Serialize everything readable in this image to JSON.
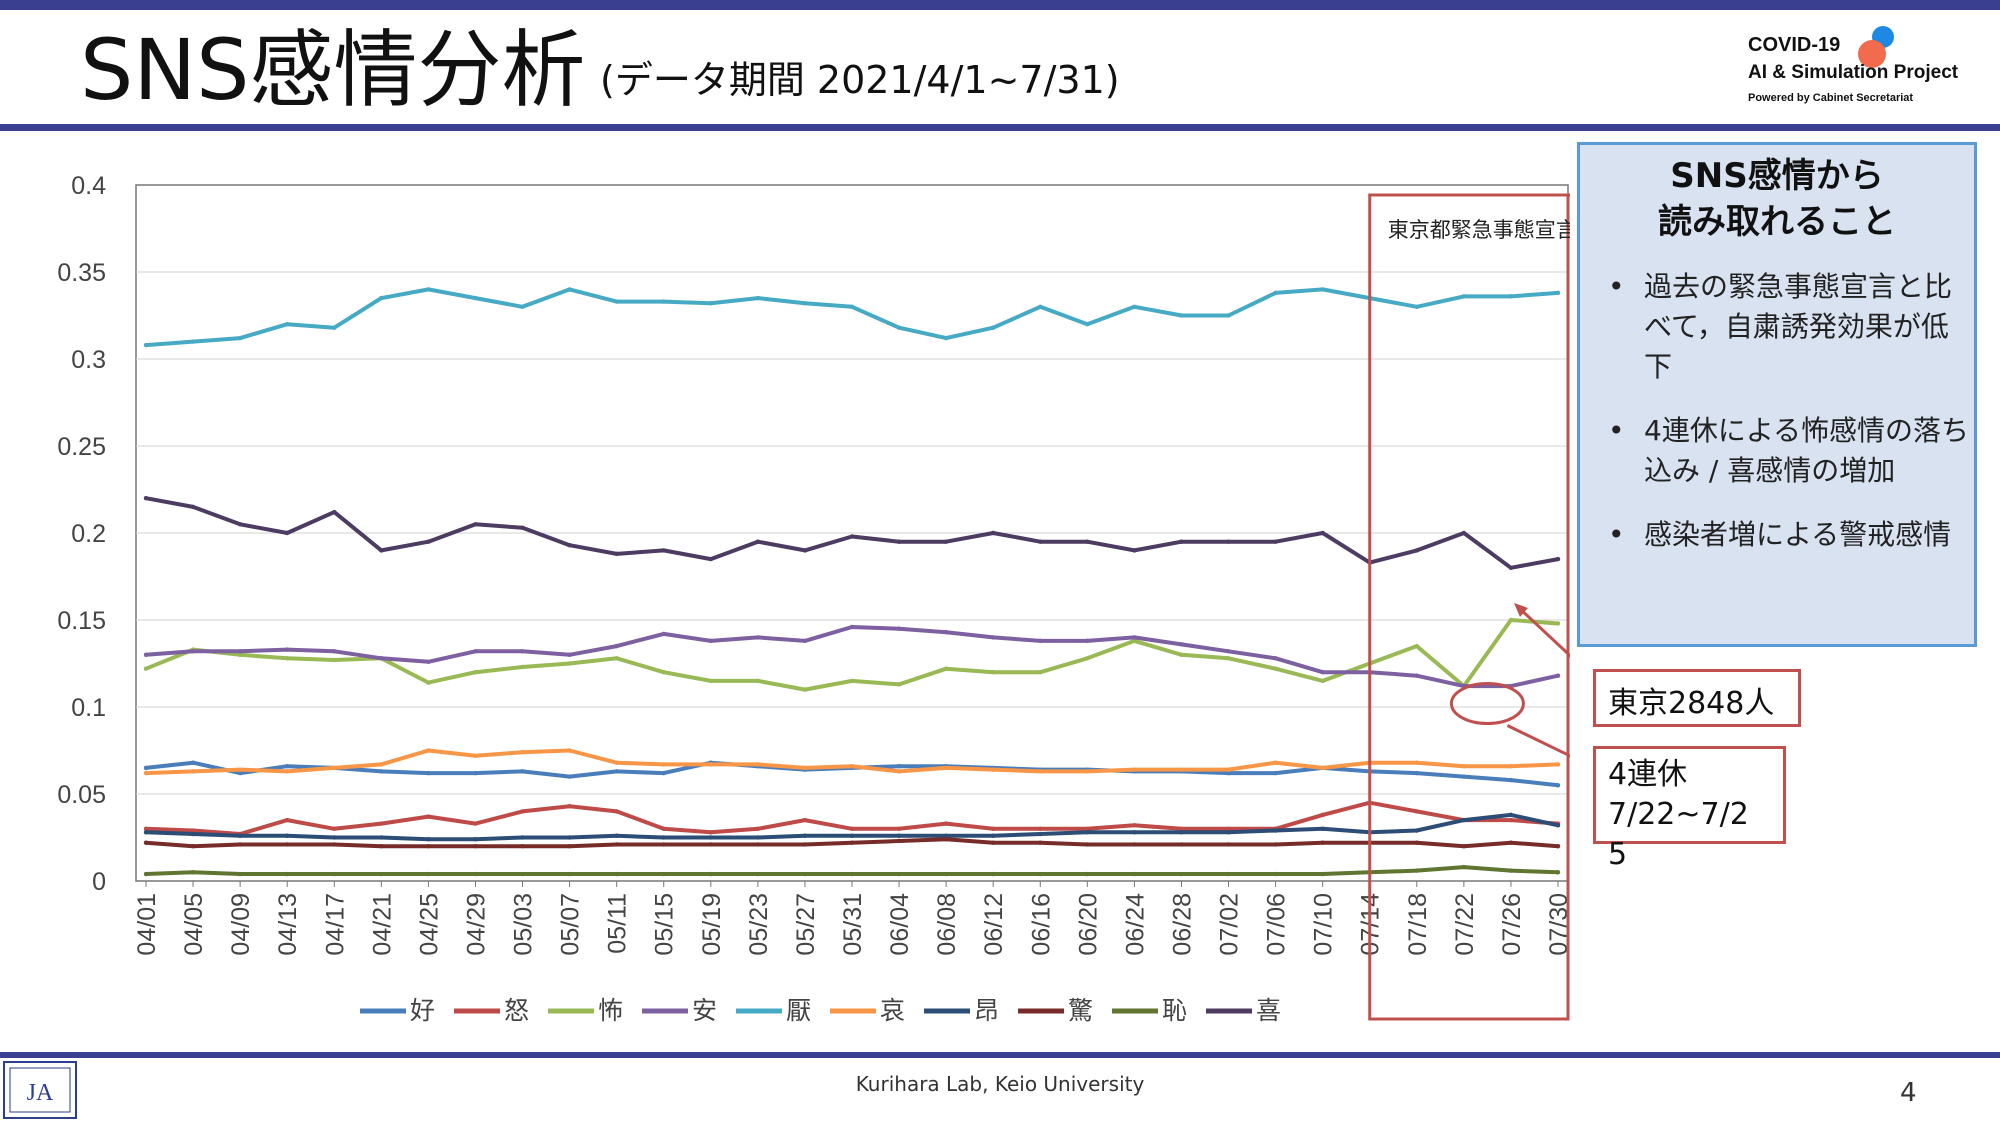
{
  "slide": {
    "title": "SNS感情分析",
    "subtitle": "(データ期間 2021/4/1~7/31)",
    "logo_line1": "COVID-19",
    "logo_line2": "AI & Simulation Project",
    "logo_line3": "Powered by Cabinet Secretariat",
    "footer": "Kurihara Lab, Keio University",
    "page_number": "4",
    "footer_logo_text": "JA"
  },
  "panel": {
    "title_line1": "SNS感情から",
    "title_line2": "読み取れること",
    "bullets": [
      "過去の緊急事態宣言と比べて，自粛誘発効果が低下",
      "4連休による怖感情の落ち込み / 喜感情の増加",
      "感染者増による警戒感情"
    ]
  },
  "callouts": {
    "tokyo": "東京2848人",
    "holiday_line1": "4連休",
    "holiday_line2": "7/22~7/2",
    "holiday_line3": "5"
  },
  "colors": {
    "好": "#4a7ebb",
    "怒": "#be4b48",
    "怖": "#98b954",
    "安": "#7d60a0",
    "厭": "#46aac4",
    "哀": "#f79646",
    "昂": "#2c4d75",
    "驚": "#772c2a",
    "恥": "#5f7530",
    "喜": "#4d3b62",
    "annotation": "#c0504d"
  },
  "chart_data": {
    "type": "line",
    "x": [
      "04/01",
      "04/05",
      "04/09",
      "04/13",
      "04/17",
      "04/21",
      "04/25",
      "04/29",
      "05/03",
      "05/07",
      "05/11",
      "05/15",
      "05/19",
      "05/23",
      "05/27",
      "05/31",
      "06/04",
      "06/08",
      "06/12",
      "06/16",
      "06/20",
      "06/24",
      "06/28",
      "07/02",
      "07/06",
      "07/10",
      "07/14",
      "07/18",
      "07/22",
      "07/26",
      "07/30"
    ],
    "ylim": [
      0,
      0.4
    ],
    "yticks": [
      "0",
      "0.05",
      "0.1",
      "0.15",
      "0.2",
      "0.25",
      "0.3",
      "0.35",
      "0.4"
    ],
    "grid": "horizontal",
    "legend_position": "bottom",
    "annotation_label": "東京都緊急事態宣言",
    "annotation_date": "07/12",
    "series": [
      {
        "name": "好",
        "values": [
          0.065,
          0.068,
          0.062,
          0.066,
          0.065,
          0.063,
          0.062,
          0.062,
          0.063,
          0.06,
          0.063,
          0.062,
          0.068,
          0.066,
          0.064,
          0.065,
          0.066,
          0.066,
          0.065,
          0.064,
          0.064,
          0.063,
          0.063,
          0.062,
          0.062,
          0.065,
          0.063,
          0.062,
          0.06,
          0.058,
          0.055
        ]
      },
      {
        "name": "怒",
        "values": [
          0.03,
          0.029,
          0.027,
          0.035,
          0.03,
          0.033,
          0.037,
          0.033,
          0.04,
          0.043,
          0.04,
          0.03,
          0.028,
          0.03,
          0.035,
          0.03,
          0.03,
          0.033,
          0.03,
          0.03,
          0.03,
          0.032,
          0.03,
          0.03,
          0.03,
          0.038,
          0.045,
          0.04,
          0.035,
          0.035,
          0.033
        ]
      },
      {
        "name": "怖",
        "values": [
          0.122,
          0.133,
          0.13,
          0.128,
          0.127,
          0.128,
          0.114,
          0.12,
          0.123,
          0.125,
          0.128,
          0.12,
          0.115,
          0.115,
          0.11,
          0.115,
          0.113,
          0.122,
          0.12,
          0.12,
          0.128,
          0.138,
          0.13,
          0.128,
          0.122,
          0.115,
          0.125,
          0.135,
          0.112,
          0.15,
          0.148
        ]
      },
      {
        "name": "安",
        "values": [
          0.13,
          0.132,
          0.132,
          0.133,
          0.132,
          0.128,
          0.126,
          0.132,
          0.132,
          0.13,
          0.135,
          0.142,
          0.138,
          0.14,
          0.138,
          0.146,
          0.145,
          0.143,
          0.14,
          0.138,
          0.138,
          0.14,
          0.136,
          0.132,
          0.128,
          0.12,
          0.12,
          0.118,
          0.112,
          0.112,
          0.118
        ]
      },
      {
        "name": "厭",
        "values": [
          0.308,
          0.31,
          0.312,
          0.32,
          0.318,
          0.335,
          0.34,
          0.335,
          0.33,
          0.34,
          0.333,
          0.333,
          0.332,
          0.335,
          0.332,
          0.33,
          0.318,
          0.312,
          0.318,
          0.33,
          0.32,
          0.33,
          0.325,
          0.325,
          0.338,
          0.34,
          0.335,
          0.33,
          0.336,
          0.336,
          0.338
        ]
      },
      {
        "name": "哀",
        "values": [
          0.062,
          0.063,
          0.064,
          0.063,
          0.065,
          0.067,
          0.075,
          0.072,
          0.074,
          0.075,
          0.068,
          0.067,
          0.067,
          0.067,
          0.065,
          0.066,
          0.063,
          0.065,
          0.064,
          0.063,
          0.063,
          0.064,
          0.064,
          0.064,
          0.068,
          0.065,
          0.068,
          0.068,
          0.066,
          0.066,
          0.067
        ]
      },
      {
        "name": "昂",
        "values": [
          0.028,
          0.027,
          0.026,
          0.026,
          0.025,
          0.025,
          0.024,
          0.024,
          0.025,
          0.025,
          0.026,
          0.025,
          0.025,
          0.025,
          0.026,
          0.026,
          0.026,
          0.026,
          0.026,
          0.027,
          0.028,
          0.028,
          0.028,
          0.028,
          0.029,
          0.03,
          0.028,
          0.029,
          0.035,
          0.038,
          0.032
        ]
      },
      {
        "name": "驚",
        "values": [
          0.022,
          0.02,
          0.021,
          0.021,
          0.021,
          0.02,
          0.02,
          0.02,
          0.02,
          0.02,
          0.021,
          0.021,
          0.021,
          0.021,
          0.021,
          0.022,
          0.023,
          0.024,
          0.022,
          0.022,
          0.021,
          0.021,
          0.021,
          0.021,
          0.021,
          0.022,
          0.022,
          0.022,
          0.02,
          0.022,
          0.02
        ]
      },
      {
        "name": "恥",
        "values": [
          0.004,
          0.005,
          0.004,
          0.004,
          0.004,
          0.004,
          0.004,
          0.004,
          0.004,
          0.004,
          0.004,
          0.004,
          0.004,
          0.004,
          0.004,
          0.004,
          0.004,
          0.004,
          0.004,
          0.004,
          0.004,
          0.004,
          0.004,
          0.004,
          0.004,
          0.004,
          0.005,
          0.006,
          0.008,
          0.006,
          0.005
        ]
      },
      {
        "name": "喜",
        "values": [
          0.22,
          0.215,
          0.205,
          0.2,
          0.212,
          0.19,
          0.195,
          0.205,
          0.203,
          0.193,
          0.188,
          0.19,
          0.185,
          0.195,
          0.19,
          0.198,
          0.195,
          0.195,
          0.2,
          0.195,
          0.195,
          0.19,
          0.195,
          0.195,
          0.195,
          0.2,
          0.183,
          0.19,
          0.2,
          0.18,
          0.185
        ]
      }
    ]
  }
}
